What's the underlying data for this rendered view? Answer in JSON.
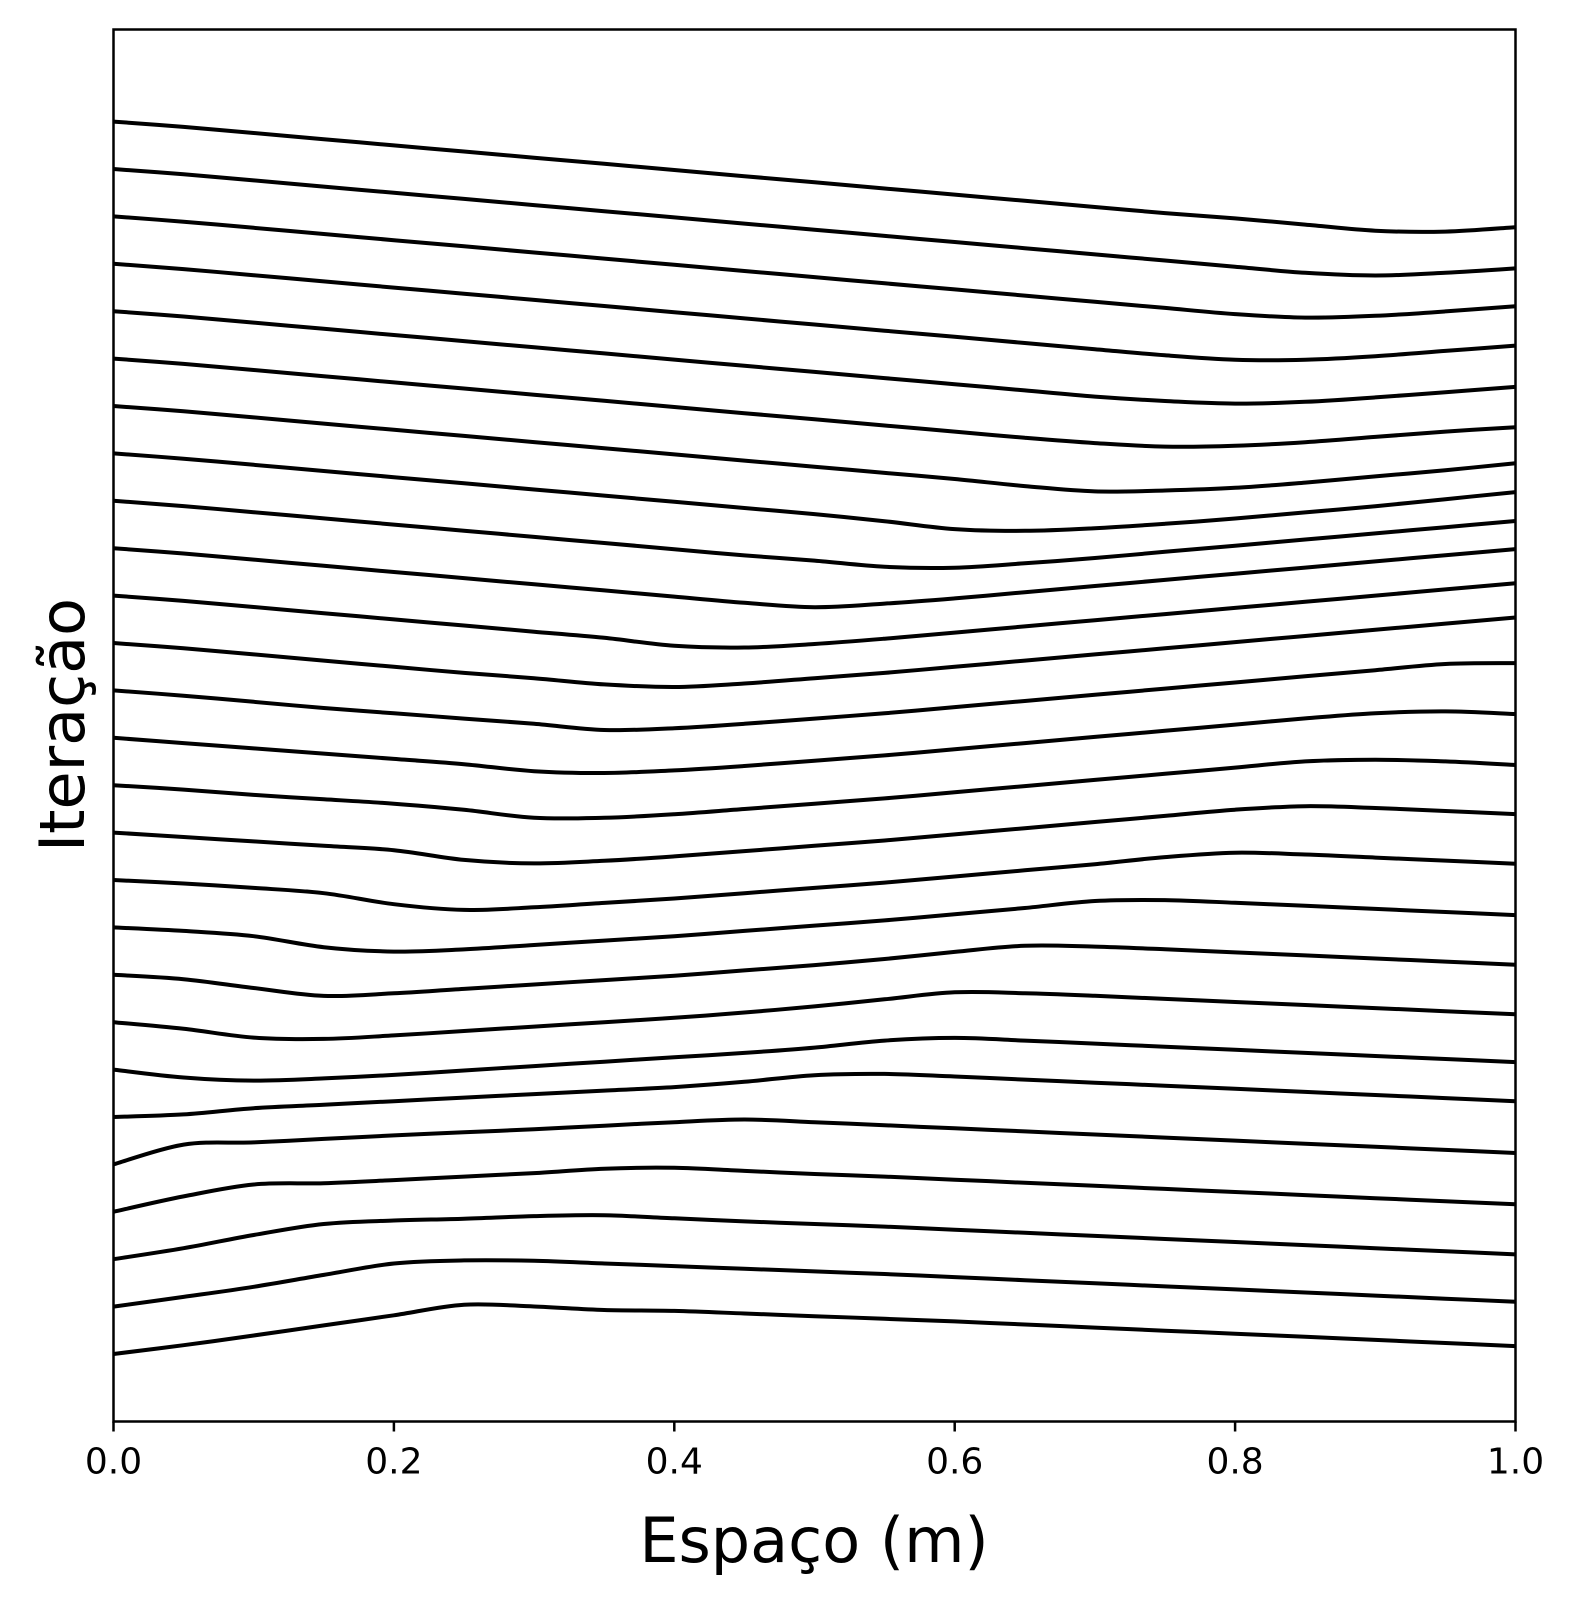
{
  "chart_data": {
    "type": "line",
    "title": "",
    "xlabel": "Espaço (m)",
    "ylabel": "Iteração",
    "xlim": [
      0.0,
      1.0
    ],
    "xticks": [
      0.0,
      0.2,
      0.4,
      0.6,
      0.8,
      1.0
    ],
    "xtick_labels": [
      "0.0",
      "0.2",
      "0.4",
      "0.6",
      "0.8",
      "1.0"
    ],
    "yticks_shown": false,
    "grid": false,
    "legend": "none",
    "line_color": "#000000",
    "description_note": "Waterfall of 27 iteration profiles; each series is a vertically offset line. Values are vertical offsets in arbitrary iteration-stacking units (0 = bottom profile baseline, larger = higher).",
    "x": [
      0.0,
      0.05,
      0.1,
      0.15,
      0.2,
      0.25,
      0.3,
      0.35,
      0.4,
      0.45,
      0.5,
      0.55,
      0.6,
      0.65,
      0.7,
      0.75,
      0.8,
      0.85,
      0.9,
      0.95,
      1.0
    ],
    "series": [
      {
        "offset": 0,
        "values": [
          0.0,
          0.2,
          0.42,
          0.65,
          0.88,
          1.12,
          1.08,
          1.0,
          0.98,
          0.92,
          0.86,
          0.8,
          0.74,
          0.67,
          0.6,
          0.53,
          0.46,
          0.39,
          0.32,
          0.25,
          0.18
        ]
      },
      {
        "offset": 1,
        "values": [
          0.0,
          0.22,
          0.45,
          0.72,
          0.98,
          1.05,
          1.04,
          0.98,
          0.92,
          0.86,
          0.8,
          0.74,
          0.67,
          0.6,
          0.53,
          0.46,
          0.39,
          0.32,
          0.25,
          0.18,
          0.11
        ]
      },
      {
        "offset": 2,
        "values": [
          0.0,
          0.25,
          0.55,
          0.8,
          0.88,
          0.92,
          0.98,
          1.0,
          0.93,
          0.86,
          0.8,
          0.74,
          0.67,
          0.6,
          0.53,
          0.46,
          0.39,
          0.32,
          0.25,
          0.18,
          0.11
        ]
      },
      {
        "offset": 3,
        "values": [
          0.0,
          0.35,
          0.62,
          0.65,
          0.72,
          0.8,
          0.88,
          0.98,
          1.0,
          0.93,
          0.86,
          0.8,
          0.73,
          0.66,
          0.59,
          0.52,
          0.45,
          0.38,
          0.31,
          0.24,
          0.17
        ]
      },
      {
        "offset": 4,
        "values": [
          0.0,
          0.45,
          0.5,
          0.58,
          0.66,
          0.73,
          0.8,
          0.88,
          0.96,
          1.02,
          0.96,
          0.89,
          0.82,
          0.75,
          0.68,
          0.61,
          0.54,
          0.47,
          0.4,
          0.33,
          0.26
        ]
      },
      {
        "offset": 5,
        "values": [
          0.0,
          0.06,
          0.2,
          0.28,
          0.36,
          0.44,
          0.52,
          0.6,
          0.68,
          0.8,
          0.95,
          0.98,
          0.92,
          0.85,
          0.78,
          0.71,
          0.64,
          0.57,
          0.5,
          0.43,
          0.36
        ]
      },
      {
        "offset": 6,
        "values": [
          0.0,
          -0.18,
          -0.25,
          -0.2,
          -0.12,
          -0.02,
          0.08,
          0.18,
          0.28,
          0.38,
          0.5,
          0.66,
          0.72,
          0.66,
          0.59,
          0.52,
          0.45,
          0.38,
          0.31,
          0.24,
          0.17
        ]
      },
      {
        "offset": 7,
        "values": [
          0.0,
          -0.15,
          -0.35,
          -0.38,
          -0.3,
          -0.2,
          -0.1,
          0.0,
          0.1,
          0.22,
          0.36,
          0.52,
          0.68,
          0.66,
          0.6,
          0.53,
          0.46,
          0.39,
          0.32,
          0.25,
          0.18
        ]
      },
      {
        "offset": 8,
        "values": [
          0.0,
          -0.1,
          -0.3,
          -0.48,
          -0.42,
          -0.32,
          -0.22,
          -0.12,
          -0.02,
          0.1,
          0.22,
          0.36,
          0.52,
          0.66,
          0.64,
          0.58,
          0.51,
          0.44,
          0.37,
          0.3,
          0.23
        ]
      },
      {
        "offset": 9,
        "values": [
          0.0,
          -0.08,
          -0.2,
          -0.45,
          -0.55,
          -0.5,
          -0.4,
          -0.3,
          -0.2,
          -0.08,
          0.04,
          0.16,
          0.3,
          0.44,
          0.6,
          0.62,
          0.56,
          0.49,
          0.42,
          0.35,
          0.28
        ]
      },
      {
        "offset": 10,
        "values": [
          0.0,
          -0.08,
          -0.18,
          -0.3,
          -0.55,
          -0.68,
          -0.62,
          -0.52,
          -0.42,
          -0.3,
          -0.18,
          -0.06,
          0.08,
          0.22,
          0.36,
          0.52,
          0.62,
          0.58,
          0.51,
          0.44,
          0.37
        ]
      },
      {
        "offset": 11,
        "values": [
          0.0,
          -0.1,
          -0.2,
          -0.3,
          -0.4,
          -0.62,
          -0.7,
          -0.64,
          -0.54,
          -0.42,
          -0.3,
          -0.18,
          -0.04,
          0.1,
          0.24,
          0.38,
          0.52,
          0.6,
          0.56,
          0.49,
          0.42
        ]
      },
      {
        "offset": 12,
        "values": [
          0.0,
          -0.1,
          -0.22,
          -0.32,
          -0.42,
          -0.56,
          -0.74,
          -0.74,
          -0.66,
          -0.54,
          -0.42,
          -0.3,
          -0.16,
          -0.02,
          0.12,
          0.26,
          0.4,
          0.54,
          0.58,
          0.54,
          0.46
        ]
      },
      {
        "offset": 13,
        "values": [
          0.0,
          -0.12,
          -0.24,
          -0.36,
          -0.48,
          -0.6,
          -0.76,
          -0.8,
          -0.74,
          -0.64,
          -0.52,
          -0.4,
          -0.26,
          -0.12,
          0.02,
          0.16,
          0.3,
          0.44,
          0.56,
          0.6,
          0.54
        ]
      },
      {
        "offset": 14,
        "values": [
          0.0,
          -0.12,
          -0.26,
          -0.4,
          -0.52,
          -0.64,
          -0.76,
          -0.9,
          -0.86,
          -0.76,
          -0.64,
          -0.52,
          -0.38,
          -0.24,
          -0.1,
          0.04,
          0.18,
          0.32,
          0.46,
          0.6,
          0.62
        ]
      },
      {
        "offset": 15,
        "values": [
          0.0,
          -0.12,
          -0.26,
          -0.4,
          -0.54,
          -0.68,
          -0.8,
          -0.94,
          -1.0,
          -0.92,
          -0.8,
          -0.68,
          -0.54,
          -0.4,
          -0.26,
          -0.12,
          0.02,
          0.16,
          0.3,
          0.44,
          0.58
        ]
      },
      {
        "offset": 16,
        "values": [
          0.0,
          -0.12,
          -0.26,
          -0.4,
          -0.54,
          -0.68,
          -0.82,
          -0.96,
          -1.14,
          -1.18,
          -1.1,
          -0.98,
          -0.84,
          -0.7,
          -0.56,
          -0.42,
          -0.28,
          -0.14,
          0.0,
          0.14,
          0.28
        ]
      },
      {
        "offset": 17,
        "values": [
          0.0,
          -0.12,
          -0.26,
          -0.4,
          -0.54,
          -0.68,
          -0.82,
          -0.96,
          -1.1,
          -1.24,
          -1.34,
          -1.26,
          -1.14,
          -1.0,
          -0.86,
          -0.72,
          -0.58,
          -0.44,
          -0.3,
          -0.16,
          -0.02
        ]
      },
      {
        "offset": 18,
        "values": [
          0.0,
          -0.12,
          -0.26,
          -0.4,
          -0.54,
          -0.68,
          -0.82,
          -0.96,
          -1.1,
          -1.24,
          -1.36,
          -1.5,
          -1.52,
          -1.42,
          -1.3,
          -1.16,
          -1.02,
          -0.88,
          -0.74,
          -0.6,
          -0.46
        ]
      },
      {
        "offset": 19,
        "values": [
          0.0,
          -0.12,
          -0.26,
          -0.4,
          -0.54,
          -0.68,
          -0.82,
          -0.96,
          -1.1,
          -1.24,
          -1.38,
          -1.54,
          -1.72,
          -1.76,
          -1.7,
          -1.6,
          -1.48,
          -1.34,
          -1.2,
          -1.04,
          -0.88
        ]
      },
      {
        "offset": 20,
        "values": [
          0.0,
          -0.12,
          -0.26,
          -0.4,
          -0.54,
          -0.68,
          -0.82,
          -0.96,
          -1.1,
          -1.24,
          -1.38,
          -1.52,
          -1.66,
          -1.82,
          -1.94,
          -1.92,
          -1.86,
          -1.74,
          -1.6,
          -1.46,
          -1.3
        ]
      },
      {
        "offset": 21,
        "values": [
          0.0,
          -0.12,
          -0.26,
          -0.4,
          -0.54,
          -0.68,
          -0.82,
          -0.96,
          -1.1,
          -1.24,
          -1.38,
          -1.52,
          -1.66,
          -1.8,
          -1.92,
          -2.0,
          -1.98,
          -1.9,
          -1.78,
          -1.66,
          -1.56
        ]
      },
      {
        "offset": 22,
        "values": [
          0.0,
          -0.12,
          -0.26,
          -0.4,
          -0.54,
          -0.68,
          -0.82,
          -0.96,
          -1.1,
          -1.24,
          -1.38,
          -1.52,
          -1.66,
          -1.8,
          -1.94,
          -2.04,
          -2.1,
          -2.06,
          -1.96,
          -1.84,
          -1.72
        ]
      },
      {
        "offset": 23,
        "values": [
          0.0,
          -0.12,
          -0.26,
          -0.4,
          -0.54,
          -0.68,
          -0.82,
          -0.96,
          -1.1,
          -1.24,
          -1.38,
          -1.52,
          -1.66,
          -1.8,
          -1.94,
          -2.08,
          -2.18,
          -2.18,
          -2.1,
          -1.98,
          -1.86
        ]
      },
      {
        "offset": 24,
        "values": [
          0.0,
          -0.12,
          -0.26,
          -0.4,
          -0.54,
          -0.68,
          -0.82,
          -0.96,
          -1.1,
          -1.24,
          -1.38,
          -1.52,
          -1.66,
          -1.8,
          -1.94,
          -2.08,
          -2.22,
          -2.3,
          -2.26,
          -2.16,
          -2.04
        ]
      },
      {
        "offset": 25,
        "values": [
          0.0,
          -0.12,
          -0.26,
          -0.4,
          -0.54,
          -0.68,
          -0.82,
          -0.96,
          -1.1,
          -1.24,
          -1.38,
          -1.52,
          -1.66,
          -1.8,
          -1.94,
          -2.08,
          -2.22,
          -2.36,
          -2.42,
          -2.36,
          -2.26
        ]
      },
      {
        "offset": 26,
        "values": [
          0.0,
          -0.12,
          -0.26,
          -0.4,
          -0.54,
          -0.68,
          -0.82,
          -0.96,
          -1.1,
          -1.24,
          -1.38,
          -1.52,
          -1.66,
          -1.8,
          -1.94,
          -2.08,
          -2.2,
          -2.34,
          -2.48,
          -2.5,
          -2.4
        ]
      }
    ]
  }
}
